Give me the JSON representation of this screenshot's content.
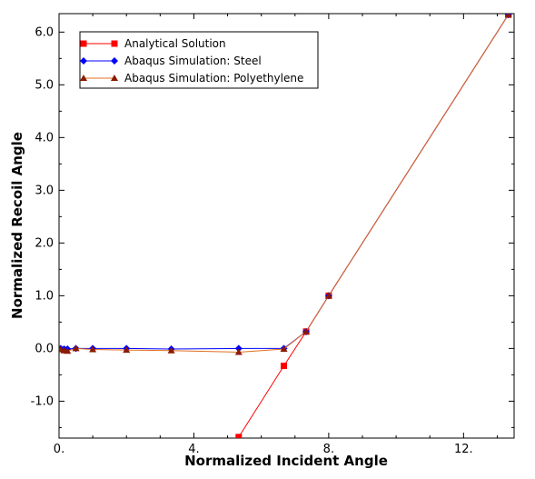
{
  "chart_data": {
    "type": "line",
    "xlabel": "Normalized Incident Angle",
    "ylabel": "Normalized Recoil Angle",
    "xlim": [
      0,
      13.5
    ],
    "ylim": [
      -1.7,
      6.35
    ],
    "xticks": [
      0,
      4,
      8,
      12
    ],
    "xtick_labels": [
      "0.",
      "4.",
      "8.",
      "12."
    ],
    "yticks": [
      -1,
      0,
      1,
      2,
      3,
      4,
      5,
      6
    ],
    "ytick_labels": [
      "-1.0",
      "0.0",
      "1.0",
      "2.0",
      "3.0",
      "4.0",
      "5.0",
      "6.0"
    ],
    "grid": false,
    "legend_position": "top-left",
    "series": [
      {
        "name": "Analytical Solution",
        "color": "#ff0000",
        "marker": "square",
        "x": [
          5.33,
          6.67,
          7.33,
          8.0,
          13.33
        ],
        "y": [
          -1.68,
          -0.33,
          0.32,
          1.0,
          6.33
        ]
      },
      {
        "name": "Abaqus Simulation: Steel",
        "color": "#0000ff",
        "marker": "diamond",
        "x": [
          0.05,
          0.15,
          0.25,
          0.5,
          1.0,
          2.0,
          3.33,
          5.33,
          6.67,
          7.33,
          8.0,
          13.33
        ],
        "y": [
          0.0,
          -0.01,
          -0.01,
          0.0,
          0.0,
          0.0,
          -0.01,
          0.0,
          0.0,
          0.32,
          1.0,
          6.33
        ]
      },
      {
        "name": "Abaqus Simulation: Polyethylene",
        "color": "#8b1a00",
        "line_color": "#e07020",
        "marker": "triangle",
        "x": [
          0.05,
          0.15,
          0.25,
          0.5,
          1.0,
          2.0,
          3.33,
          5.33,
          6.67,
          7.33,
          8.0,
          13.33
        ],
        "y": [
          -0.02,
          -0.04,
          -0.05,
          0.0,
          -0.02,
          -0.03,
          -0.04,
          -0.07,
          -0.01,
          0.32,
          1.0,
          6.33
        ]
      }
    ]
  }
}
